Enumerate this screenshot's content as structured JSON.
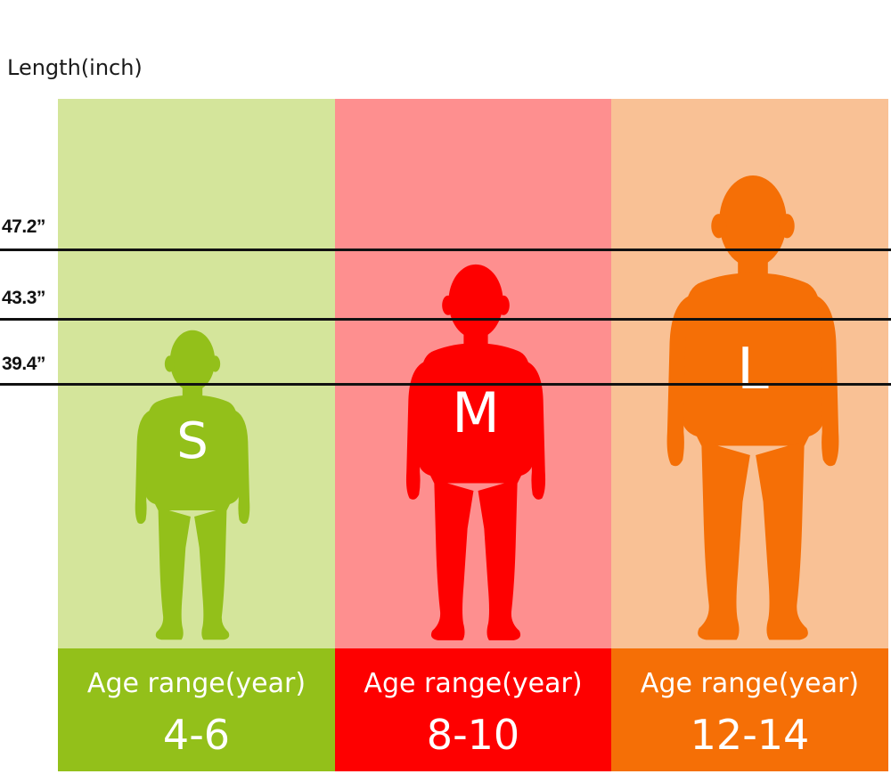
{
  "axis_title": "Length(inch)",
  "height_marks": [
    {
      "label": "47.2”"
    },
    {
      "label": "43.3”"
    },
    {
      "label": "39.4”"
    }
  ],
  "sizes": [
    {
      "letter": "S",
      "age_label": "Age range(year)",
      "age_range": "4-6",
      "light_color": "#d4e59b",
      "dark_color": "#93c01a"
    },
    {
      "letter": "M",
      "age_label": "Age range(year)",
      "age_range": "8-10",
      "light_color": "#fe8f8f",
      "dark_color": "#fe0000"
    },
    {
      "letter": "L",
      "age_label": "Age range(year)",
      "age_range": "12-14",
      "light_color": "#f9c195",
      "dark_color": "#f56f06"
    }
  ]
}
